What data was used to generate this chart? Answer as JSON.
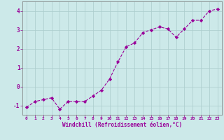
{
  "x": [
    0,
    1,
    2,
    3,
    4,
    5,
    6,
    7,
    8,
    9,
    10,
    11,
    12,
    13,
    14,
    15,
    16,
    17,
    18,
    19,
    20,
    21,
    22,
    23
  ],
  "y": [
    -1.1,
    -0.8,
    -0.7,
    -0.6,
    -1.2,
    -0.8,
    -0.8,
    -0.8,
    -0.5,
    -0.2,
    0.4,
    1.3,
    2.1,
    2.3,
    2.85,
    3.0,
    3.15,
    3.05,
    2.6,
    3.05,
    3.5,
    3.5,
    4.0,
    4.1
  ],
  "line_color": "#990099",
  "marker": "D",
  "marker_size": 2.2,
  "line_width": 0.8,
  "background_color": "#cce9e9",
  "grid_color": "#aacccc",
  "xlabel": "Windchill (Refroidissement éolien,°C)",
  "xlabel_color": "#990099",
  "tick_color": "#990099",
  "ylim": [
    -1.5,
    4.5
  ],
  "xlim": [
    -0.5,
    23.5
  ],
  "yticks": [
    -1,
    0,
    1,
    2,
    3,
    4
  ],
  "xticks": [
    0,
    1,
    2,
    3,
    4,
    5,
    6,
    7,
    8,
    9,
    10,
    11,
    12,
    13,
    14,
    15,
    16,
    17,
    18,
    19,
    20,
    21,
    22,
    23
  ]
}
